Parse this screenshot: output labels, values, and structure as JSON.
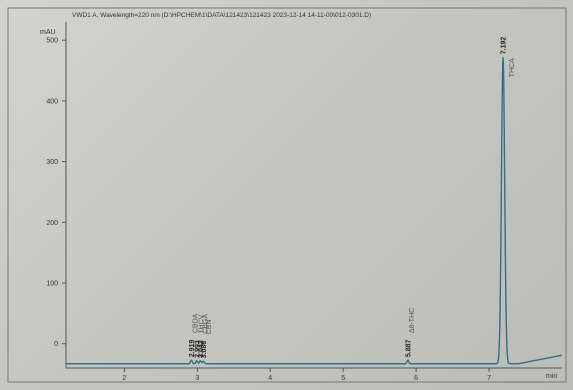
{
  "header": {
    "text": "VWD1 A, Wavelength=220 nm (D:\\HPCHEM\\1\\DATA\\121423\\121423 2023-12-14 14-11-00\\012-0301.D)"
  },
  "chart_data": {
    "type": "line",
    "title": "",
    "ylabel": "mAU",
    "xlabel": "min",
    "xlim": [
      1.2,
      8.0
    ],
    "ylim": [
      -40,
      530
    ],
    "x_ticks": [
      2,
      3,
      4,
      5,
      6,
      7
    ],
    "x_unit_label": "min",
    "y_ticks": [
      0,
      100,
      200,
      300,
      400,
      500
    ],
    "grid": false,
    "legend": "none",
    "line_color": "#2f6f8f",
    "peaks": [
      {
        "rt": 2.919,
        "rt_label": "2.919",
        "name": "CBDA",
        "height": 6
      },
      {
        "rt": 2.993,
        "rt_label": "2.993",
        "name": "THCV",
        "height": 5
      },
      {
        "rt": 3.043,
        "rt_label": "3.043",
        "name": "CBGA",
        "height": 5
      },
      {
        "rt": 3.086,
        "rt_label": "3.086",
        "name": "CBN",
        "height": 4
      },
      {
        "rt": 5.887,
        "rt_label": "5.887",
        "name": "Δ8-THC",
        "height": 6
      },
      {
        "rt": 7.192,
        "rt_label": "7.192",
        "name": "THCA",
        "height": 505
      }
    ]
  }
}
